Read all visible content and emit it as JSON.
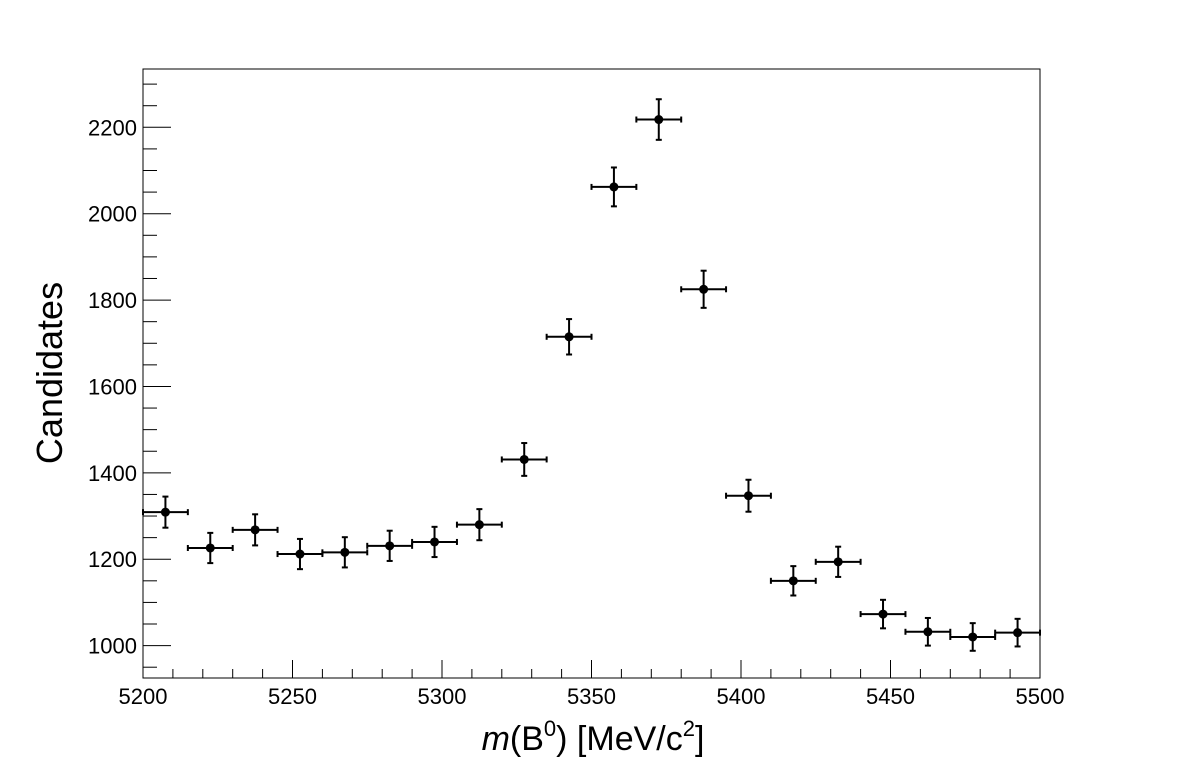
{
  "chart_data": {
    "type": "scatter",
    "title": "",
    "xlabel": {
      "prefix_italic": "m",
      "paren_open": "(",
      "particle": "B",
      "particle_sup": "0",
      "paren_close": ")",
      "unit_open": " [MeV/c",
      "unit_sup": "2",
      "unit_close": "]"
    },
    "ylabel": "Candidates",
    "xlim": [
      5200,
      5500
    ],
    "ylim": [
      925,
      2335
    ],
    "x_ticks": [
      "5200",
      "5250",
      "5300",
      "5350",
      "5400",
      "5450",
      "5500"
    ],
    "y_ticks": [
      "1000",
      "1200",
      "1400",
      "1600",
      "1800",
      "2000",
      "2200"
    ],
    "x_tick_values": [
      5200,
      5250,
      5300,
      5350,
      5400,
      5450,
      5500
    ],
    "y_tick_values": [
      1000,
      1200,
      1400,
      1600,
      1800,
      2000,
      2200
    ],
    "x_minor_step": 10,
    "y_minor_step": 50,
    "grid": false,
    "legend": "none",
    "bin_width": 15,
    "series": [
      {
        "points": [
          {
            "x": 5207.5,
            "y": 1309,
            "yerr": 36
          },
          {
            "x": 5222.5,
            "y": 1226,
            "yerr": 35
          },
          {
            "x": 5237.5,
            "y": 1268,
            "yerr": 36
          },
          {
            "x": 5252.5,
            "y": 1212,
            "yerr": 35
          },
          {
            "x": 5267.5,
            "y": 1216,
            "yerr": 35
          },
          {
            "x": 5282.5,
            "y": 1231,
            "yerr": 35
          },
          {
            "x": 5297.5,
            "y": 1240,
            "yerr": 35
          },
          {
            "x": 5312.5,
            "y": 1280,
            "yerr": 36
          },
          {
            "x": 5327.5,
            "y": 1431,
            "yerr": 38
          },
          {
            "x": 5342.5,
            "y": 1715,
            "yerr": 41
          },
          {
            "x": 5357.5,
            "y": 2062,
            "yerr": 45
          },
          {
            "x": 5372.5,
            "y": 2218,
            "yerr": 47
          },
          {
            "x": 5387.5,
            "y": 1825,
            "yerr": 43
          },
          {
            "x": 5402.5,
            "y": 1347,
            "yerr": 37
          },
          {
            "x": 5417.5,
            "y": 1150,
            "yerr": 34
          },
          {
            "x": 5432.5,
            "y": 1194,
            "yerr": 35
          },
          {
            "x": 5447.5,
            "y": 1073,
            "yerr": 33
          },
          {
            "x": 5462.5,
            "y": 1032,
            "yerr": 32
          },
          {
            "x": 5477.5,
            "y": 1020,
            "yerr": 32
          },
          {
            "x": 5492.5,
            "y": 1030,
            "yerr": 32
          }
        ]
      }
    ],
    "colors": {
      "marker": "#000000",
      "axis": "#000000",
      "background": "#ffffff"
    }
  }
}
